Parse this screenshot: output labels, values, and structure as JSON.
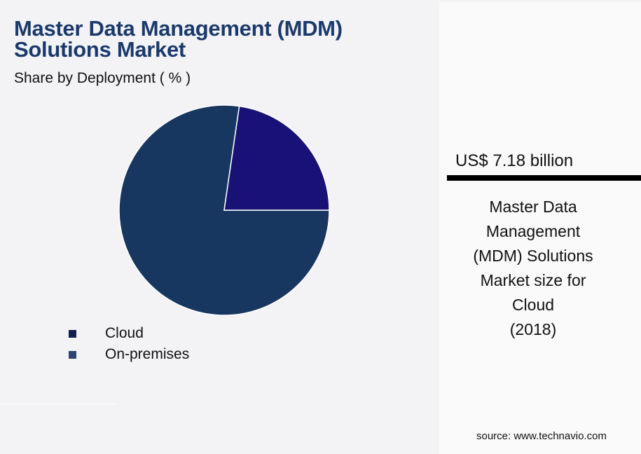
{
  "header": {
    "title_line1": "Master Data Management (MDM)",
    "title_line2": "Solutions Market",
    "subtitle": "Share by Deployment ( % )"
  },
  "legend": [
    {
      "label": "Cloud",
      "color": "#0f1e4a"
    },
    {
      "label": "On-premises",
      "color": "#2d4373"
    }
  ],
  "kpi": {
    "value": "US$ 7.18 billion",
    "description_lines": [
      "Master Data",
      "Management",
      "(MDM) Solutions",
      "Market size for",
      "Cloud",
      "(2018)"
    ]
  },
  "source": "source: www.technavio.com",
  "colors": {
    "title": "#1b3a6b",
    "cloud_slice": "#173660",
    "onprem_slice": "#181276",
    "background": "#f3f3f6",
    "panel": "#fafafa"
  },
  "chart_data": {
    "type": "pie",
    "title": "Master Data Management (MDM) Solutions Market",
    "subtitle": "Share by Deployment ( % )",
    "categories": [
      "Cloud",
      "On-premises"
    ],
    "values": [
      77.3,
      22.7
    ],
    "legend_position": "bottom-left",
    "annotation": "US$ 7.18 billion — Master Data Management (MDM) Solutions Market size for Cloud (2018)"
  }
}
